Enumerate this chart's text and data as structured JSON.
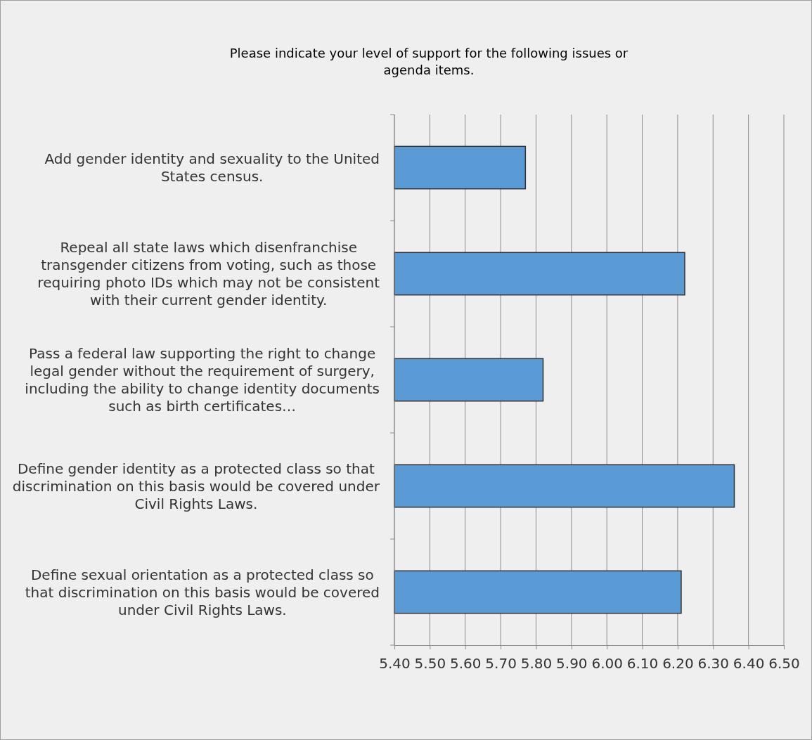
{
  "chart_data": {
    "type": "bar",
    "orientation": "horizontal",
    "title": "Please indicate your level of support for the following issues or agenda items.",
    "categories": [
      "Add gender identity and sexuality to the United States census.",
      "Repeal all state laws which disenfranchise transgender citizens from voting, such as those requiring photo IDs which may not be consistent with their current gender identity.",
      "Pass a federal law supporting the right to change legal gender without the requirement of surgery, including the ability to change identity documents such as birth certificates…",
      "Define gender identity as a protected class so that discrimination on this basis would be covered under Civil Rights Laws.",
      "Define sexual orientation as a protected class so that discrimination on this basis would be covered under Civil Rights Laws."
    ],
    "values": [
      5.77,
      6.22,
      5.82,
      6.36,
      6.21
    ],
    "color": "#5b9bd5",
    "xlim": [
      5.4,
      6.5
    ],
    "xticks": [
      {
        "value": 5.4,
        "label": "5.40"
      },
      {
        "value": 5.5,
        "label": "5.50"
      },
      {
        "value": 5.6,
        "label": "5.60"
      },
      {
        "value": 5.7,
        "label": "5.70"
      },
      {
        "value": 5.8,
        "label": "5.80"
      },
      {
        "value": 5.9,
        "label": "5.90"
      },
      {
        "value": 6.0,
        "label": "6.00"
      },
      {
        "value": 6.1,
        "label": "6.10"
      },
      {
        "value": 6.2,
        "label": "6.20"
      },
      {
        "value": 6.3,
        "label": "6.30"
      },
      {
        "value": 6.4,
        "label": "6.40"
      },
      {
        "value": 6.5,
        "label": "6.50"
      }
    ],
    "grid": "x"
  }
}
